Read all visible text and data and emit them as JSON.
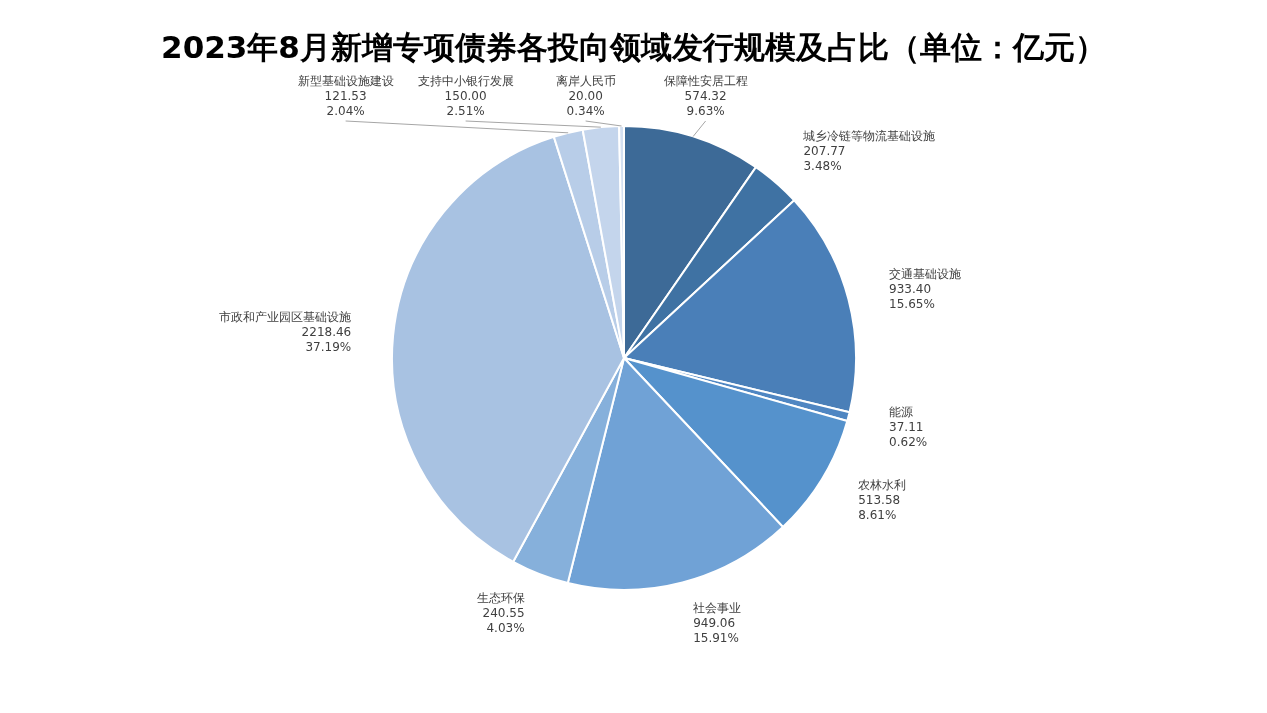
{
  "chart_data": {
    "type": "pie",
    "title": "2023年8月新增专项债券各投向领域发行规模及占比（单位：亿元）",
    "categories": [
      "保障性安居工程",
      "城乡冷链等物流基础设施",
      "交通基础设施",
      "能源",
      "农林水利",
      "社会事业",
      "生态环保",
      "市政和产业园区基础设施",
      "新型基础设施建设",
      "支持中小银行发展",
      "离岸人民币"
    ],
    "values": [
      574.32,
      207.77,
      933.4,
      37.11,
      513.58,
      949.06,
      240.55,
      2218.46,
      121.53,
      150.0,
      20.0
    ],
    "value_labels": [
      "574.32\n9.63%",
      "207.77\n3.48%",
      "933.40\n15.65%",
      "37.11\n0.62%",
      "513.58\n8.61%",
      "949.06\n15.91%",
      "240.55\n4.03%",
      "2218.46\n37.19%",
      "121.53\n2.04%",
      "150.00\n2.51%",
      "20.00\n0.34%"
    ],
    "colors": [
      "#3d6a97",
      "#3f72a3",
      "#4a7fb8",
      "#4f86c2",
      "#5592cc",
      "#70a2d6",
      "#86b0db",
      "#a8c2e2",
      "#b8cde8",
      "#c4d5ec",
      "#d4e0f1"
    ]
  }
}
